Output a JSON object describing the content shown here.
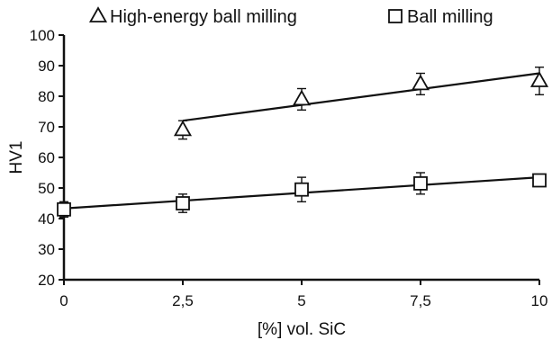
{
  "chart_data": {
    "type": "scatter",
    "title": "",
    "xlabel": "[%] vol. SiC",
    "ylabel": "HV1",
    "xlim": [
      0,
      10
    ],
    "ylim": [
      20,
      100
    ],
    "xticks": [
      0,
      2.5,
      5,
      7.5,
      10
    ],
    "xtick_labels": [
      "0",
      "2,5",
      "5",
      "7,5",
      "10"
    ],
    "yticks": [
      20,
      30,
      40,
      50,
      60,
      70,
      80,
      90,
      100
    ],
    "ytick_labels": [
      "20",
      "30",
      "40",
      "50",
      "60",
      "70",
      "80",
      "90",
      "100"
    ],
    "grid": false,
    "legend_position": "top",
    "series": [
      {
        "name": "High-energy ball milling",
        "marker": "triangle",
        "color": "#111111",
        "x": [
          2.5,
          5,
          7.5,
          10
        ],
        "y": [
          69,
          79,
          84,
          85
        ],
        "error": [
          3,
          3.5,
          3.5,
          4.5
        ],
        "trendline": {
          "x": [
            2.5,
            10
          ],
          "y": [
            72,
            87.5
          ]
        }
      },
      {
        "name": "Ball milling",
        "marker": "square",
        "color": "#111111",
        "x": [
          0,
          2.5,
          5,
          7.5,
          10
        ],
        "y": [
          43,
          45,
          49.5,
          51.5,
          52.5
        ],
        "error": [
          2.5,
          3,
          4,
          3.5,
          2
        ],
        "trendline": {
          "x": [
            0,
            10
          ],
          "y": [
            43.3,
            53.5
          ]
        }
      }
    ]
  }
}
